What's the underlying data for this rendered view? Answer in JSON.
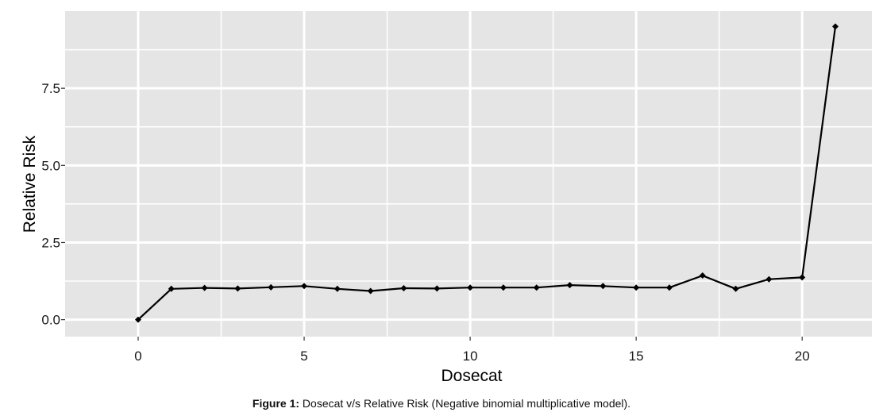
{
  "chart_data": {
    "type": "line",
    "xlabel": "Dosecat",
    "ylabel": "Relative Risk",
    "x": [
      0,
      1,
      2,
      3,
      4,
      5,
      6,
      7,
      8,
      9,
      10,
      11,
      12,
      13,
      14,
      15,
      16,
      17,
      18,
      19,
      20,
      21
    ],
    "series": [
      {
        "values": [
          0.0,
          1.0,
          1.03,
          1.01,
          1.05,
          1.09,
          1.0,
          0.93,
          1.02,
          1.01,
          1.04,
          1.04,
          1.04,
          1.12,
          1.09,
          1.04,
          1.04,
          1.43,
          1.0,
          1.31,
          1.37,
          9.5
        ]
      }
    ],
    "xlim": [
      -2.2,
      22.1
    ],
    "ylim": [
      -0.55,
      10.0
    ],
    "x_ticks": [
      0,
      5,
      10,
      15,
      20
    ],
    "y_ticks": [
      0,
      2.5,
      5,
      7.5
    ],
    "x_tick_labels": [
      "0",
      "5",
      "10",
      "15",
      "20"
    ],
    "y_tick_labels": [
      "0.0",
      "2.5",
      "5.0",
      "7.5"
    ],
    "grid": true,
    "legend": "none",
    "colors": {
      "panel": "#e5e5e5",
      "grid": "#ffffff",
      "line": "#000000"
    }
  },
  "caption": {
    "label": "Figure 1:",
    "text": " Dosecat v/s Relative Risk (Negative binomial multiplicative model)."
  }
}
